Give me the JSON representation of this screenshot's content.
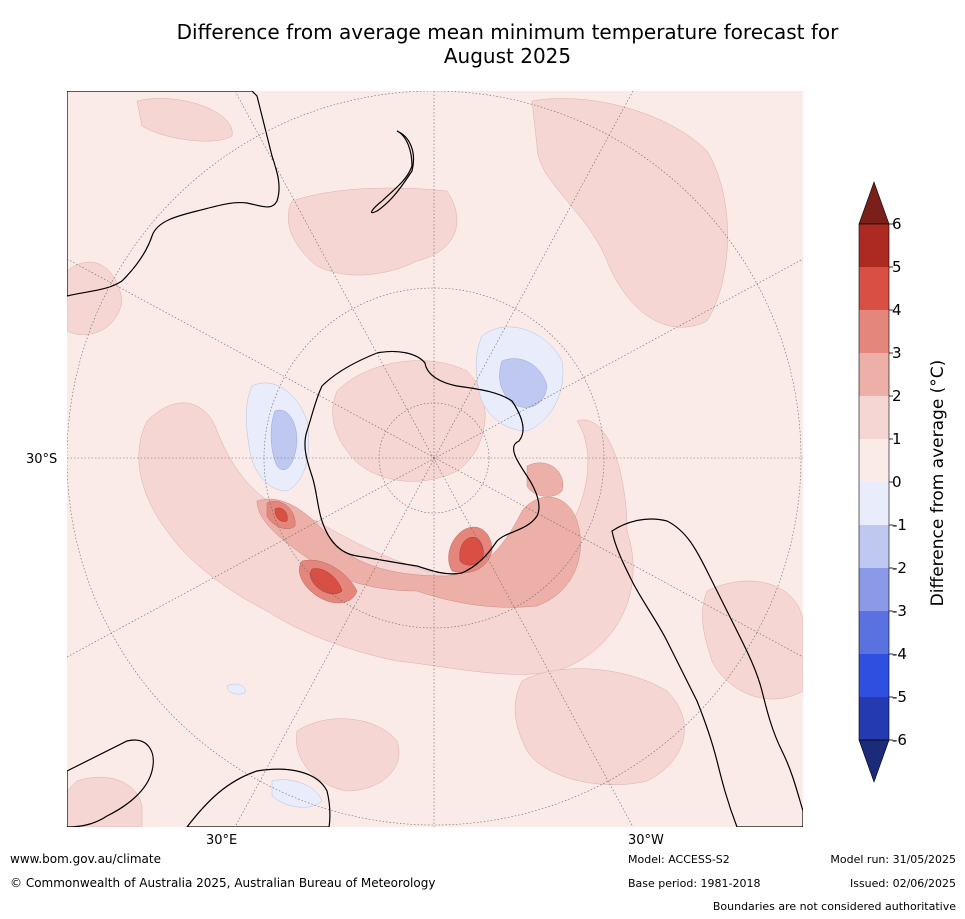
{
  "title_line1": "Difference from average mean minimum temperature forecast for",
  "title_line2": "August 2025",
  "map": {
    "lat_label": "30°S",
    "lon_label_left": "30°E",
    "lon_label_right": "30°W",
    "colors": {
      "land_outline": "#000000",
      "graticule": "#666666",
      "anom_0_1": "#fbebe8",
      "anom_1_2": "#f5d6d3",
      "anom_2_3": "#edb0a9",
      "anom_3_4": "#e5867d",
      "anom_4_5": "#d94f44",
      "anom_neg_1_0": "#e8ecfb",
      "anom_neg_2_1": "#bfc8f0"
    }
  },
  "colorbar": {
    "title": "Difference from average (°C)",
    "ticks": [
      "6",
      "5",
      "4",
      "3",
      "2",
      "1",
      "0",
      "-1",
      "-2",
      "-3",
      "-4",
      "-5",
      "-6"
    ],
    "colors_top_to_bottom": [
      "#7b1f1a",
      "#ad2a22",
      "#d94f44",
      "#e5867d",
      "#edb0a9",
      "#f5d6d3",
      "#fbebe8",
      "#e8ecfb",
      "#bfc8f0",
      "#8a9ae6",
      "#5a72e0",
      "#2f4fe0",
      "#233ab0",
      "#1c2a7a"
    ]
  },
  "footer": {
    "website": "www.bom.gov.au/climate",
    "copyright": "© Commonwealth of Australia 2025, Australian Bureau of Meteorology",
    "model": "Model: ACCESS-S2",
    "base_period": "Base period: 1981-2018",
    "model_run": "Model run: 31/05/2025",
    "issued": "Issued: 02/06/2025",
    "boundaries": "Boundaries are not considered authoritative"
  }
}
